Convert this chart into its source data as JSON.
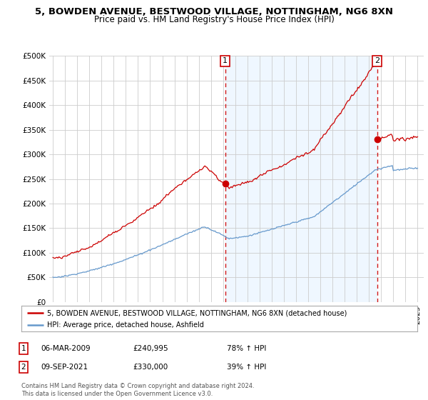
{
  "title": "5, BOWDEN AVENUE, BESTWOOD VILLAGE, NOTTINGHAM, NG6 8XN",
  "subtitle": "Price paid vs. HM Land Registry's House Price Index (HPI)",
  "legend_line1": "5, BOWDEN AVENUE, BESTWOOD VILLAGE, NOTTINGHAM, NG6 8XN (detached house)",
  "legend_line2": "HPI: Average price, detached house, Ashfield",
  "annotation1_label": "1",
  "annotation1_date": "06-MAR-2009",
  "annotation1_price": "£240,995",
  "annotation1_hpi": "78% ↑ HPI",
  "annotation2_label": "2",
  "annotation2_date": "09-SEP-2021",
  "annotation2_price": "£330,000",
  "annotation2_hpi": "39% ↑ HPI",
  "footer": "Contains HM Land Registry data © Crown copyright and database right 2024.\nThis data is licensed under the Open Government Licence v3.0.",
  "ylim": [
    0,
    500000
  ],
  "yticks": [
    0,
    50000,
    100000,
    150000,
    200000,
    250000,
    300000,
    350000,
    400000,
    450000,
    500000
  ],
  "red_color": "#cc0000",
  "blue_color": "#6699cc",
  "blue_fill": "#ddeeff",
  "background_color": "#ffffff",
  "grid_color": "#cccccc",
  "sale1_year": 2009.167,
  "sale1_price": 240995,
  "sale2_year": 2021.667,
  "sale2_price": 330000
}
